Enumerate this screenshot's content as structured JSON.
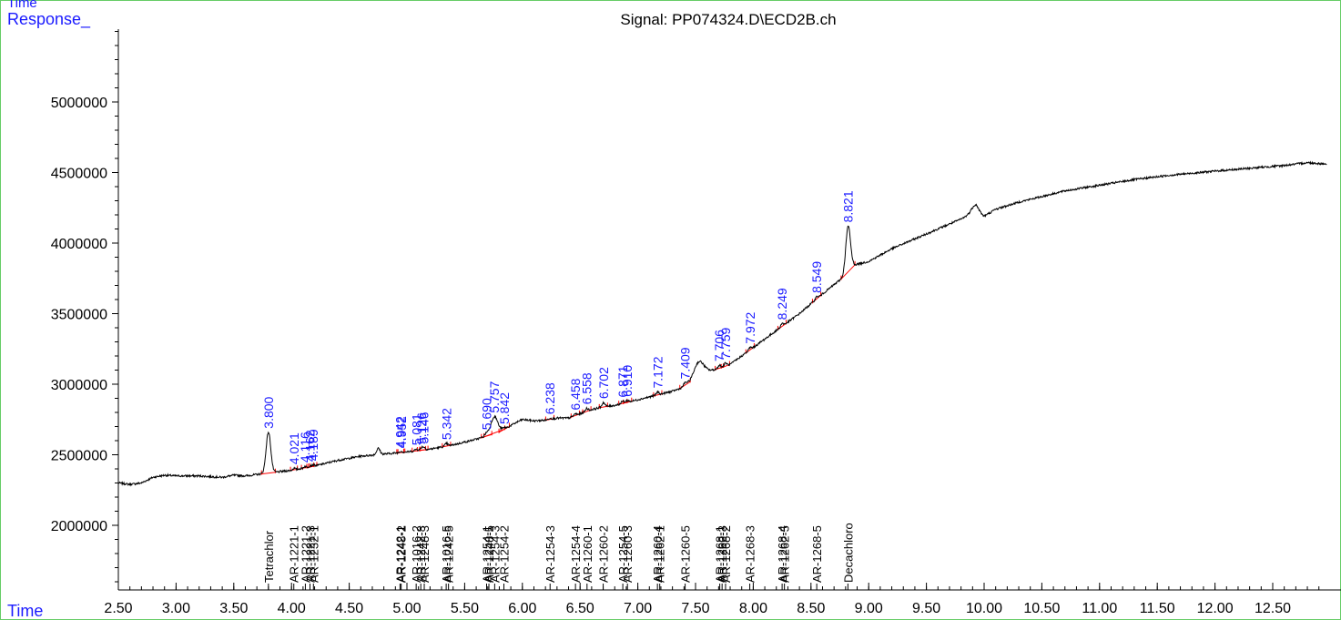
{
  "chart_data": {
    "type": "line",
    "title": "Signal: PP074324.D\\ECD2B.ch",
    "corner_label": "Time",
    "ylabel": "Response_",
    "xlabel": "Time",
    "xlim": [
      2.5,
      12.97
    ],
    "ylim": [
      1500000,
      5500000
    ],
    "x_ticks": [
      "2.50",
      "3.00",
      "3.50",
      "4.00",
      "4.50",
      "5.00",
      "5.50",
      "6.00",
      "6.50",
      "7.00",
      "7.50",
      "8.00",
      "8.50",
      "9.00",
      "9.50",
      "10.00",
      "10.50",
      "11.00",
      "11.50",
      "12.00",
      "12.50"
    ],
    "y_ticks": [
      "2000000",
      "2500000",
      "3000000",
      "3500000",
      "4000000",
      "4500000",
      "5000000"
    ],
    "baseline": [
      [
        2.5,
        2300000
      ],
      [
        2.6,
        2290000
      ],
      [
        2.7,
        2300000
      ],
      [
        2.8,
        2340000
      ],
      [
        2.9,
        2355000
      ],
      [
        3.0,
        2350000
      ],
      [
        3.2,
        2350000
      ],
      [
        3.4,
        2340000
      ],
      [
        3.5,
        2355000
      ],
      [
        3.6,
        2350000
      ],
      [
        3.7,
        2360000
      ],
      [
        3.8,
        2370000
      ],
      [
        3.9,
        2380000
      ],
      [
        4.0,
        2390000
      ],
      [
        4.2,
        2420000
      ],
      [
        4.4,
        2460000
      ],
      [
        4.6,
        2490000
      ],
      [
        4.8,
        2505000
      ],
      [
        5.0,
        2520000
      ],
      [
        5.2,
        2540000
      ],
      [
        5.4,
        2570000
      ],
      [
        5.6,
        2610000
      ],
      [
        5.8,
        2660000
      ],
      [
        5.95,
        2730000
      ],
      [
        6.0,
        2750000
      ],
      [
        6.1,
        2740000
      ],
      [
        6.2,
        2745000
      ],
      [
        6.3,
        2760000
      ],
      [
        6.4,
        2760000
      ],
      [
        6.5,
        2790000
      ],
      [
        6.6,
        2820000
      ],
      [
        6.7,
        2840000
      ],
      [
        6.8,
        2850000
      ],
      [
        6.9,
        2870000
      ],
      [
        7.0,
        2890000
      ],
      [
        7.1,
        2910000
      ],
      [
        7.2,
        2930000
      ],
      [
        7.3,
        2950000
      ],
      [
        7.4,
        2980000
      ],
      [
        7.5,
        3050000
      ],
      [
        7.6,
        3090000
      ],
      [
        7.7,
        3110000
      ],
      [
        7.8,
        3140000
      ],
      [
        7.9,
        3200000
      ],
      [
        8.0,
        3260000
      ],
      [
        8.2,
        3380000
      ],
      [
        8.4,
        3500000
      ],
      [
        8.6,
        3640000
      ],
      [
        8.8,
        3770000
      ],
      [
        8.85,
        3840000
      ],
      [
        9.0,
        3870000
      ],
      [
        9.2,
        3960000
      ],
      [
        9.4,
        4030000
      ],
      [
        9.6,
        4100000
      ],
      [
        9.8,
        4170000
      ],
      [
        9.93,
        4230000
      ],
      [
        10.0,
        4190000
      ],
      [
        10.1,
        4240000
      ],
      [
        10.3,
        4290000
      ],
      [
        10.5,
        4330000
      ],
      [
        10.7,
        4370000
      ],
      [
        11.0,
        4410000
      ],
      [
        11.3,
        4450000
      ],
      [
        11.6,
        4480000
      ],
      [
        12.0,
        4510000
      ],
      [
        12.3,
        4530000
      ],
      [
        12.6,
        4550000
      ],
      [
        12.8,
        4570000
      ],
      [
        12.97,
        4560000
      ]
    ],
    "peaks": [
      {
        "rt": 3.8,
        "label": "3.800",
        "height": 2660000,
        "width": 0.02
      },
      {
        "rt": 4.021,
        "label": "4.021",
        "height": 2405000,
        "width": 0.01
      },
      {
        "rt": 4.116,
        "label": "4.116",
        "height": 2418000,
        "width": 0.01
      },
      {
        "rt": 4.162,
        "label": "4.162",
        "height": 2424000,
        "width": 0.01
      },
      {
        "rt": 4.189,
        "label": "4.189",
        "height": 2430000,
        "width": 0.01
      },
      {
        "rt": 4.752,
        "label": "",
        "height": 2545000,
        "width": 0.015
      },
      {
        "rt": 4.942,
        "label": "4.942",
        "height": 2520000,
        "width": 0.01
      },
      {
        "rt": 4.952,
        "label": "4.952",
        "height": 2522000,
        "width": 0.01
      },
      {
        "rt": 5.081,
        "label": "5.081",
        "height": 2540000,
        "width": 0.012
      },
      {
        "rt": 5.126,
        "label": "5.126",
        "height": 2548000,
        "width": 0.012
      },
      {
        "rt": 5.146,
        "label": "5.146",
        "height": 2552000,
        "width": 0.012
      },
      {
        "rt": 5.342,
        "label": "5.342",
        "height": 2580000,
        "width": 0.012
      },
      {
        "rt": 5.69,
        "label": "5.690",
        "height": 2650000,
        "width": 0.015
      },
      {
        "rt": 5.757,
        "label": "5.757",
        "height": 2770000,
        "width": 0.03
      },
      {
        "rt": 5.842,
        "label": "5.842",
        "height": 2690000,
        "width": 0.015
      },
      {
        "rt": 6.238,
        "label": "6.238",
        "height": 2760000,
        "width": 0.012
      },
      {
        "rt": 6.458,
        "label": "6.458",
        "height": 2790000,
        "width": 0.012
      },
      {
        "rt": 6.558,
        "label": "6.558",
        "height": 2830000,
        "width": 0.012
      },
      {
        "rt": 6.702,
        "label": "6.702",
        "height": 2870000,
        "width": 0.012
      },
      {
        "rt": 6.871,
        "label": "6.871",
        "height": 2880000,
        "width": 0.012
      },
      {
        "rt": 6.91,
        "label": "6.910",
        "height": 2885000,
        "width": 0.012
      },
      {
        "rt": 7.172,
        "label": "7.172",
        "height": 2945000,
        "width": 0.012
      },
      {
        "rt": 7.409,
        "label": "7.409",
        "height": 3010000,
        "width": 0.015
      },
      {
        "rt": 7.53,
        "label": "",
        "height": 3160000,
        "width": 0.04
      },
      {
        "rt": 7.706,
        "label": "7.706",
        "height": 3135000,
        "width": 0.012
      },
      {
        "rt": 7.759,
        "label": "7.759",
        "height": 3150000,
        "width": 0.012
      },
      {
        "rt": 7.972,
        "label": "7.972",
        "height": 3260000,
        "width": 0.012
      },
      {
        "rt": 8.249,
        "label": "8.249",
        "height": 3430000,
        "width": 0.012
      },
      {
        "rt": 8.549,
        "label": "8.549",
        "height": 3620000,
        "width": 0.012
      },
      {
        "rt": 8.821,
        "label": "8.821",
        "height": 4120000,
        "width": 0.02
      },
      {
        "rt": 9.92,
        "label": "",
        "height": 4270000,
        "width": 0.03
      }
    ],
    "compound_markers": [
      {
        "rt": 3.8,
        "label": "Tetrachlor"
      },
      {
        "rt": 4.02,
        "label": "AR-1221-1"
      },
      {
        "rt": 4.12,
        "label": "AR-1221-2"
      },
      {
        "rt": 4.16,
        "label": "AR-1221-3"
      },
      {
        "rt": 4.19,
        "label": "AR-1232-1"
      },
      {
        "rt": 4.94,
        "label": "AR-1242-1"
      },
      {
        "rt": 4.95,
        "label": "AR-1248-2"
      },
      {
        "rt": 5.08,
        "label": "AR-1016-2"
      },
      {
        "rt": 5.12,
        "label": "AR-1242-3"
      },
      {
        "rt": 5.15,
        "label": "AR-1248-3"
      },
      {
        "rt": 5.34,
        "label": "AR-1016-5"
      },
      {
        "rt": 5.36,
        "label": "AR-1242-5"
      },
      {
        "rt": 5.69,
        "label": "AR-1254-1"
      },
      {
        "rt": 5.71,
        "label": "AR-1248-5"
      },
      {
        "rt": 5.76,
        "label": "AR-1254-3"
      },
      {
        "rt": 5.84,
        "label": "AR-1254-2"
      },
      {
        "rt": 6.24,
        "label": "AR-1254-3"
      },
      {
        "rt": 6.46,
        "label": "AR-1254-4"
      },
      {
        "rt": 6.56,
        "label": "AR-1260-1"
      },
      {
        "rt": 6.7,
        "label": "AR-1260-2"
      },
      {
        "rt": 6.87,
        "label": "AR-1254-5"
      },
      {
        "rt": 6.91,
        "label": "AR-1260-3"
      },
      {
        "rt": 7.17,
        "label": "AR-1260-4"
      },
      {
        "rt": 7.19,
        "label": "AR-1262-1"
      },
      {
        "rt": 7.41,
        "label": "AR-1260-5"
      },
      {
        "rt": 7.71,
        "label": "AR-1268-1"
      },
      {
        "rt": 7.73,
        "label": "AR-1262-3"
      },
      {
        "rt": 7.76,
        "label": "AR-1268-2"
      },
      {
        "rt": 7.97,
        "label": "AR-1268-3"
      },
      {
        "rt": 8.25,
        "label": "AR-1268-4"
      },
      {
        "rt": 8.27,
        "label": "AR-1262-5"
      },
      {
        "rt": 8.55,
        "label": "AR-1268-5"
      },
      {
        "rt": 8.82,
        "label": "Decachloro"
      }
    ],
    "colors": {
      "trace": "#000000",
      "integration": "#ff0000",
      "label": "#1a1aff",
      "frame": "#66cc66"
    }
  }
}
